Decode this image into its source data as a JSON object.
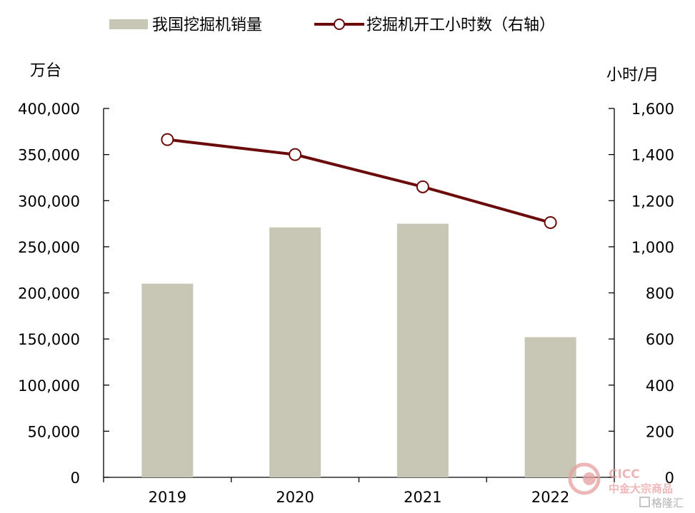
{
  "chart_data": {
    "type": "bar",
    "categories": [
      "2019",
      "2020",
      "2021",
      "2022"
    ],
    "series": [
      {
        "name": "我国挖掘机销量",
        "type": "bar",
        "axis": "left",
        "color": "#c8c6b4",
        "values": [
          210000,
          271000,
          275000,
          152000
        ]
      },
      {
        "name": "挖掘机开工小时数（右轴）",
        "type": "line",
        "axis": "right",
        "color": "#6b0a0a",
        "values": [
          1465,
          1400,
          1260,
          1105
        ]
      }
    ],
    "y_left": {
      "unit": "万台",
      "min": 0,
      "max": 400000,
      "ticks": [
        "0",
        "50,000",
        "100,000",
        "150,000",
        "200,000",
        "250,000",
        "300,000",
        "350,000",
        "400,000"
      ]
    },
    "y_right": {
      "unit": "小时/月",
      "min": 0,
      "max": 1600,
      "ticks": [
        "0",
        "200",
        "400",
        "600",
        "800",
        "1,000",
        "1,200",
        "1,400",
        "1,600"
      ]
    },
    "legend_position": "top",
    "grid": false
  },
  "watermark": {
    "brand": "CICC",
    "brand_cn": "中金大宗商品",
    "source": "格隆汇"
  }
}
